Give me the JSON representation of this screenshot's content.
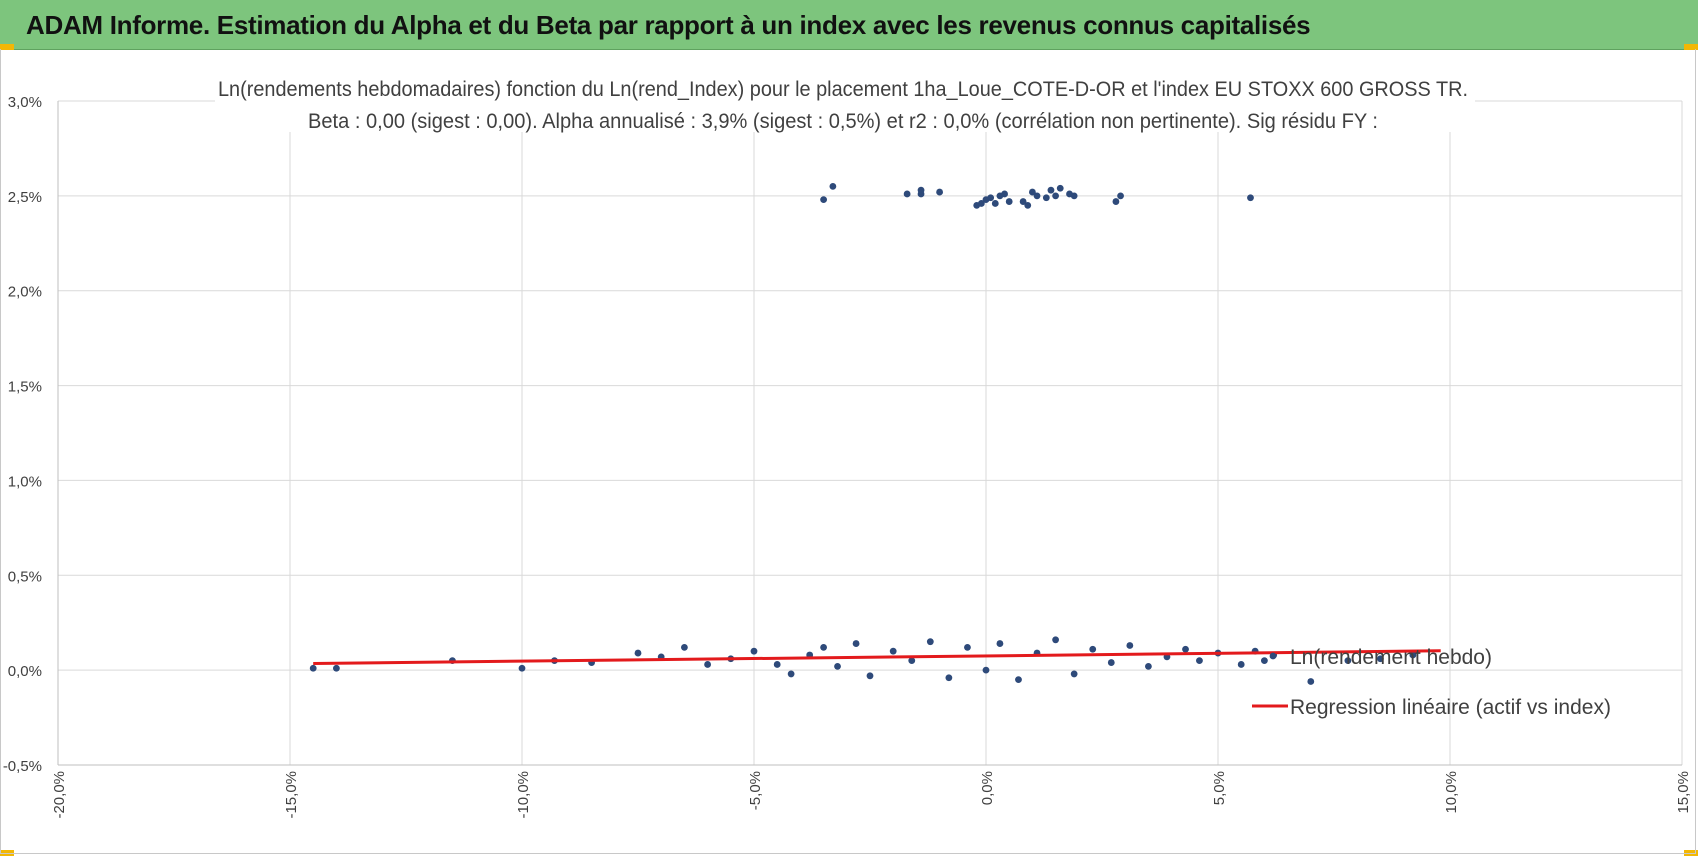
{
  "header": {
    "title": "ADAM Informe. Estimation du Alpha et du Beta par rapport à un index avec les revenus connus capitalisés",
    "accent_color": "#7dc57d",
    "corner_color": "#f2b705"
  },
  "chart_data": {
    "type": "scatter",
    "title": "Ln(rendements hebdomadaires) fonction du Ln(rend_Index) pour le placement 1ha_Loue_COTE-D-OR et l'index EU STOXX 600 GROSS TR.",
    "subtitle": "Beta : 0,00 (sigest : 0,00). Alpha annualisé : 3,9% (sigest : 0,5%) et r2 : 0,0% (corrélation non pertinente). Sig résidu FY :",
    "xlabel": "",
    "ylabel": "",
    "xlim": [
      -20,
      15
    ],
    "ylim": [
      -0.5,
      3.0
    ],
    "x_ticks": [
      -20,
      -15,
      -10,
      -5,
      0,
      5,
      10,
      15
    ],
    "x_tick_labels": [
      "-20,0%",
      "-15,0%",
      "-10,0%",
      "-5,0%",
      "0,0%",
      "5,0%",
      "10,0%",
      "15,0%"
    ],
    "y_ticks": [
      3.0,
      2.5,
      2.0,
      1.5,
      1.0,
      0.5,
      0.0,
      -0.5
    ],
    "y_tick_labels": [
      "3,0%",
      "2,5%",
      "2,0%",
      "1,5%",
      "1,0%",
      "0,5%",
      "0,0%",
      "-0,5%"
    ],
    "grid": true,
    "legend_position": "right",
    "series": [
      {
        "name": "Ln(rendement hebdo)",
        "kind": "scatter",
        "color": "#2e4a7a",
        "points": [
          [
            -14.5,
            0.01
          ],
          [
            -14.0,
            0.01
          ],
          [
            -11.5,
            0.05
          ],
          [
            -10.0,
            0.01
          ],
          [
            -9.3,
            0.05
          ],
          [
            -8.5,
            0.04
          ],
          [
            -7.5,
            0.09
          ],
          [
            -7.0,
            0.07
          ],
          [
            -6.5,
            0.12
          ],
          [
            -6.0,
            0.03
          ],
          [
            -5.5,
            0.06
          ],
          [
            -5.0,
            0.1
          ],
          [
            -4.5,
            0.03
          ],
          [
            -4.2,
            -0.02
          ],
          [
            -3.8,
            0.08
          ],
          [
            -3.5,
            0.12
          ],
          [
            -3.2,
            0.02
          ],
          [
            -2.8,
            0.14
          ],
          [
            -2.5,
            -0.03
          ],
          [
            -2.0,
            0.1
          ],
          [
            -1.6,
            0.05
          ],
          [
            -1.2,
            0.15
          ],
          [
            -0.8,
            -0.04
          ],
          [
            -0.4,
            0.12
          ],
          [
            0.0,
            0.0
          ],
          [
            0.3,
            0.14
          ],
          [
            0.7,
            -0.05
          ],
          [
            1.1,
            0.09
          ],
          [
            1.5,
            0.16
          ],
          [
            1.9,
            -0.02
          ],
          [
            2.3,
            0.11
          ],
          [
            2.7,
            0.04
          ],
          [
            3.1,
            0.13
          ],
          [
            3.5,
            0.02
          ],
          [
            3.9,
            0.07
          ],
          [
            4.3,
            0.11
          ],
          [
            4.6,
            0.05
          ],
          [
            5.0,
            0.09
          ],
          [
            5.5,
            0.03
          ],
          [
            6.0,
            0.05
          ],
          [
            6.2,
            0.08
          ],
          [
            7.0,
            -0.06
          ],
          [
            7.8,
            0.05
          ],
          [
            8.5,
            0.06
          ],
          [
            9.2,
            0.08
          ],
          [
            5.8,
            0.1
          ],
          [
            -3.5,
            2.48
          ],
          [
            -3.3,
            2.55
          ],
          [
            -1.7,
            2.51
          ],
          [
            -1.4,
            2.53
          ],
          [
            -1.4,
            2.51
          ],
          [
            -1.0,
            2.52
          ],
          [
            -0.2,
            2.45
          ],
          [
            -0.1,
            2.46
          ],
          [
            0.0,
            2.48
          ],
          [
            0.1,
            2.49
          ],
          [
            0.2,
            2.46
          ],
          [
            0.3,
            2.5
          ],
          [
            0.4,
            2.51
          ],
          [
            0.5,
            2.47
          ],
          [
            0.8,
            2.47
          ],
          [
            0.9,
            2.45
          ],
          [
            1.0,
            2.52
          ],
          [
            1.1,
            2.5
          ],
          [
            1.3,
            2.49
          ],
          [
            1.4,
            2.53
          ],
          [
            1.5,
            2.5
          ],
          [
            1.6,
            2.54
          ],
          [
            1.8,
            2.51
          ],
          [
            1.9,
            2.5
          ],
          [
            2.8,
            2.47
          ],
          [
            2.9,
            2.5
          ],
          [
            5.7,
            2.49
          ]
        ]
      },
      {
        "name": "Regression linéaire (actif vs index)",
        "kind": "line",
        "color": "#e31a1c",
        "points": [
          [
            -14.5,
            0.035
          ],
          [
            9.8,
            0.102
          ]
        ]
      }
    ]
  }
}
